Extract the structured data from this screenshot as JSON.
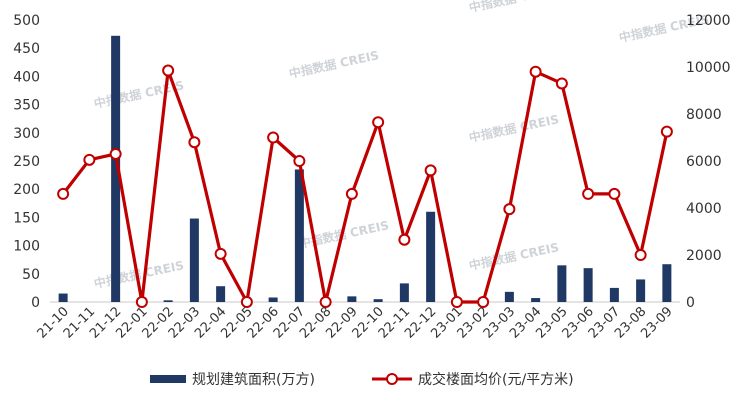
{
  "chart_data": {
    "type": "bar+line",
    "categories": [
      "21-10",
      "21-11",
      "21-12",
      "22-01",
      "22-02",
      "22-03",
      "22-04",
      "22-05",
      "22-06",
      "22-07",
      "22-08",
      "22-09",
      "22-10",
      "22-11",
      "22-12",
      "23-01",
      "23-02",
      "23-03",
      "23-04",
      "23-05",
      "23-06",
      "23-07",
      "23-08",
      "23-09"
    ],
    "series": [
      {
        "name": "规划建筑面积(万方)",
        "type": "bar",
        "axis": "left",
        "color": "#1f3864",
        "values": [
          15,
          0,
          472,
          0,
          3,
          148,
          28,
          0,
          8,
          235,
          0,
          10,
          5,
          33,
          160,
          0,
          0,
          18,
          7,
          65,
          60,
          25,
          40,
          67
        ]
      },
      {
        "name": "成交楼面均价(元/平方米)",
        "type": "line",
        "axis": "right",
        "color": "#c00000",
        "values": [
          4600,
          6050,
          6300,
          0,
          9850,
          6800,
          2050,
          0,
          7000,
          6000,
          0,
          4600,
          7650,
          2650,
          5600,
          0,
          0,
          3950,
          9800,
          9300,
          4600,
          4600,
          2000,
          7250
        ]
      }
    ],
    "y_left": {
      "lim": [
        0,
        500
      ],
      "ticks": [
        "0",
        "50",
        "100",
        "150",
        "200",
        "250",
        "300",
        "350",
        "400",
        "450",
        "500"
      ]
    },
    "y_right": {
      "lim": [
        0,
        12000
      ],
      "ticks": [
        "0",
        "2000",
        "4000",
        "6000",
        "8000",
        "10000",
        "12000"
      ]
    },
    "grid": false,
    "legend_position": "bottom",
    "watermark": "中指数据 CREIS"
  }
}
